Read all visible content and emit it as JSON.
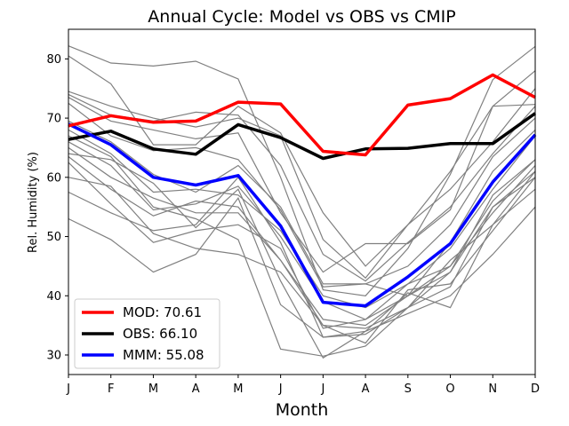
{
  "chart_data": {
    "type": "line",
    "title": "Annual Cycle: Model vs OBS vs CMIP",
    "xlabel": "Month",
    "ylabel": "Rel. Humidity (%)",
    "categories": [
      "J",
      "F",
      "M",
      "A",
      "M",
      "J",
      "J",
      "A",
      "S",
      "O",
      "N",
      "D"
    ],
    "yticks": [
      30,
      40,
      50,
      60,
      70,
      80
    ],
    "ylim": [
      26.7,
      85.0
    ],
    "grid": false,
    "legend_position": "lower-left",
    "background_series_color": "#808080",
    "background_series": [
      [
        82.2,
        79.3,
        78.8,
        79.6,
        76.6,
        60.0,
        41.0,
        40.0,
        48.0,
        60.5,
        76.5,
        82.1
      ],
      [
        80.5,
        75.8,
        65.5,
        65.5,
        72.0,
        67.5,
        54.0,
        45.0,
        52.0,
        61.0,
        72.0,
        78.0
      ],
      [
        74.5,
        72.0,
        70.0,
        68.5,
        70.0,
        67.0,
        49.5,
        43.0,
        52.0,
        58.0,
        66.0,
        75.0
      ],
      [
        74.0,
        70.5,
        69.5,
        71.0,
        70.5,
        62.0,
        47.0,
        42.5,
        49.0,
        55.0,
        64.0,
        72.0
      ],
      [
        73.5,
        69.5,
        68.0,
        66.5,
        67.5,
        54.0,
        44.0,
        48.8,
        48.8,
        54.5,
        72.0,
        72.3
      ],
      [
        72.5,
        67.0,
        64.5,
        65.0,
        63.0,
        54.5,
        41.5,
        42.0,
        40.0,
        49.0,
        61.0,
        68.0
      ],
      [
        69.5,
        66.0,
        60.5,
        57.5,
        62.0,
        55.0,
        42.0,
        42.0,
        45.0,
        52.0,
        63.5,
        70.0
      ],
      [
        68.0,
        64.0,
        57.5,
        58.0,
        57.0,
        51.0,
        40.0,
        38.0,
        42.0,
        48.0,
        58.0,
        67.0
      ],
      [
        66.0,
        62.0,
        54.5,
        55.5,
        58.5,
        50.0,
        39.0,
        36.0,
        42.0,
        45.0,
        56.0,
        63.0
      ],
      [
        65.0,
        60.0,
        56.5,
        54.0,
        54.0,
        46.0,
        36.0,
        35.0,
        40.0,
        45.0,
        54.0,
        62.0
      ],
      [
        63.5,
        58.0,
        53.5,
        56.0,
        55.0,
        46.0,
        35.0,
        34.5,
        38.0,
        46.0,
        52.0,
        61.0
      ],
      [
        62.5,
        55.5,
        49.0,
        51.0,
        52.0,
        48.0,
        34.5,
        36.0,
        40.0,
        44.0,
        57.0,
        63.0
      ],
      [
        60.0,
        58.5,
        50.5,
        48.0,
        47.0,
        44.0,
        35.0,
        32.0,
        41.0,
        42.0,
        51.0,
        60.0
      ],
      [
        57.5,
        54.0,
        51.0,
        52.0,
        60.0,
        49.0,
        33.0,
        33.5,
        38.0,
        44.0,
        55.0,
        60.0
      ],
      [
        53.0,
        49.5,
        44.0,
        47.0,
        56.5,
        38.5,
        33.0,
        34.0,
        37.0,
        40.0,
        47.0,
        55.0
      ],
      [
        64.0,
        63.0,
        59.0,
        51.5,
        58.0,
        42.5,
        29.5,
        34.0,
        40.5,
        38.0,
        52.0,
        58.0
      ],
      [
        67.0,
        63.5,
        55.0,
        53.0,
        49.5,
        31.0,
        29.8,
        31.5,
        38.0,
        41.5,
        55.0,
        61.0
      ]
    ],
    "series": [
      {
        "name": "MOD",
        "legend_label": "MOD: 70.61",
        "color": "#ff0000",
        "values": [
          68.7,
          70.4,
          69.3,
          69.5,
          72.7,
          72.4,
          64.4,
          63.8,
          72.2,
          73.3,
          77.3,
          73.5
        ]
      },
      {
        "name": "OBS",
        "legend_label": "OBS: 66.10",
        "color": "#000000",
        "values": [
          66.4,
          67.8,
          64.8,
          63.9,
          68.9,
          66.7,
          63.2,
          64.8,
          64.9,
          65.7,
          65.7,
          70.8
        ]
      },
      {
        "name": "MMM",
        "legend_label": "MMM: 55.08",
        "color": "#0000ff",
        "values": [
          69.0,
          65.5,
          60.0,
          58.7,
          60.3,
          51.8,
          38.9,
          38.3,
          43.2,
          48.8,
          59.2,
          67.2
        ]
      }
    ]
  }
}
